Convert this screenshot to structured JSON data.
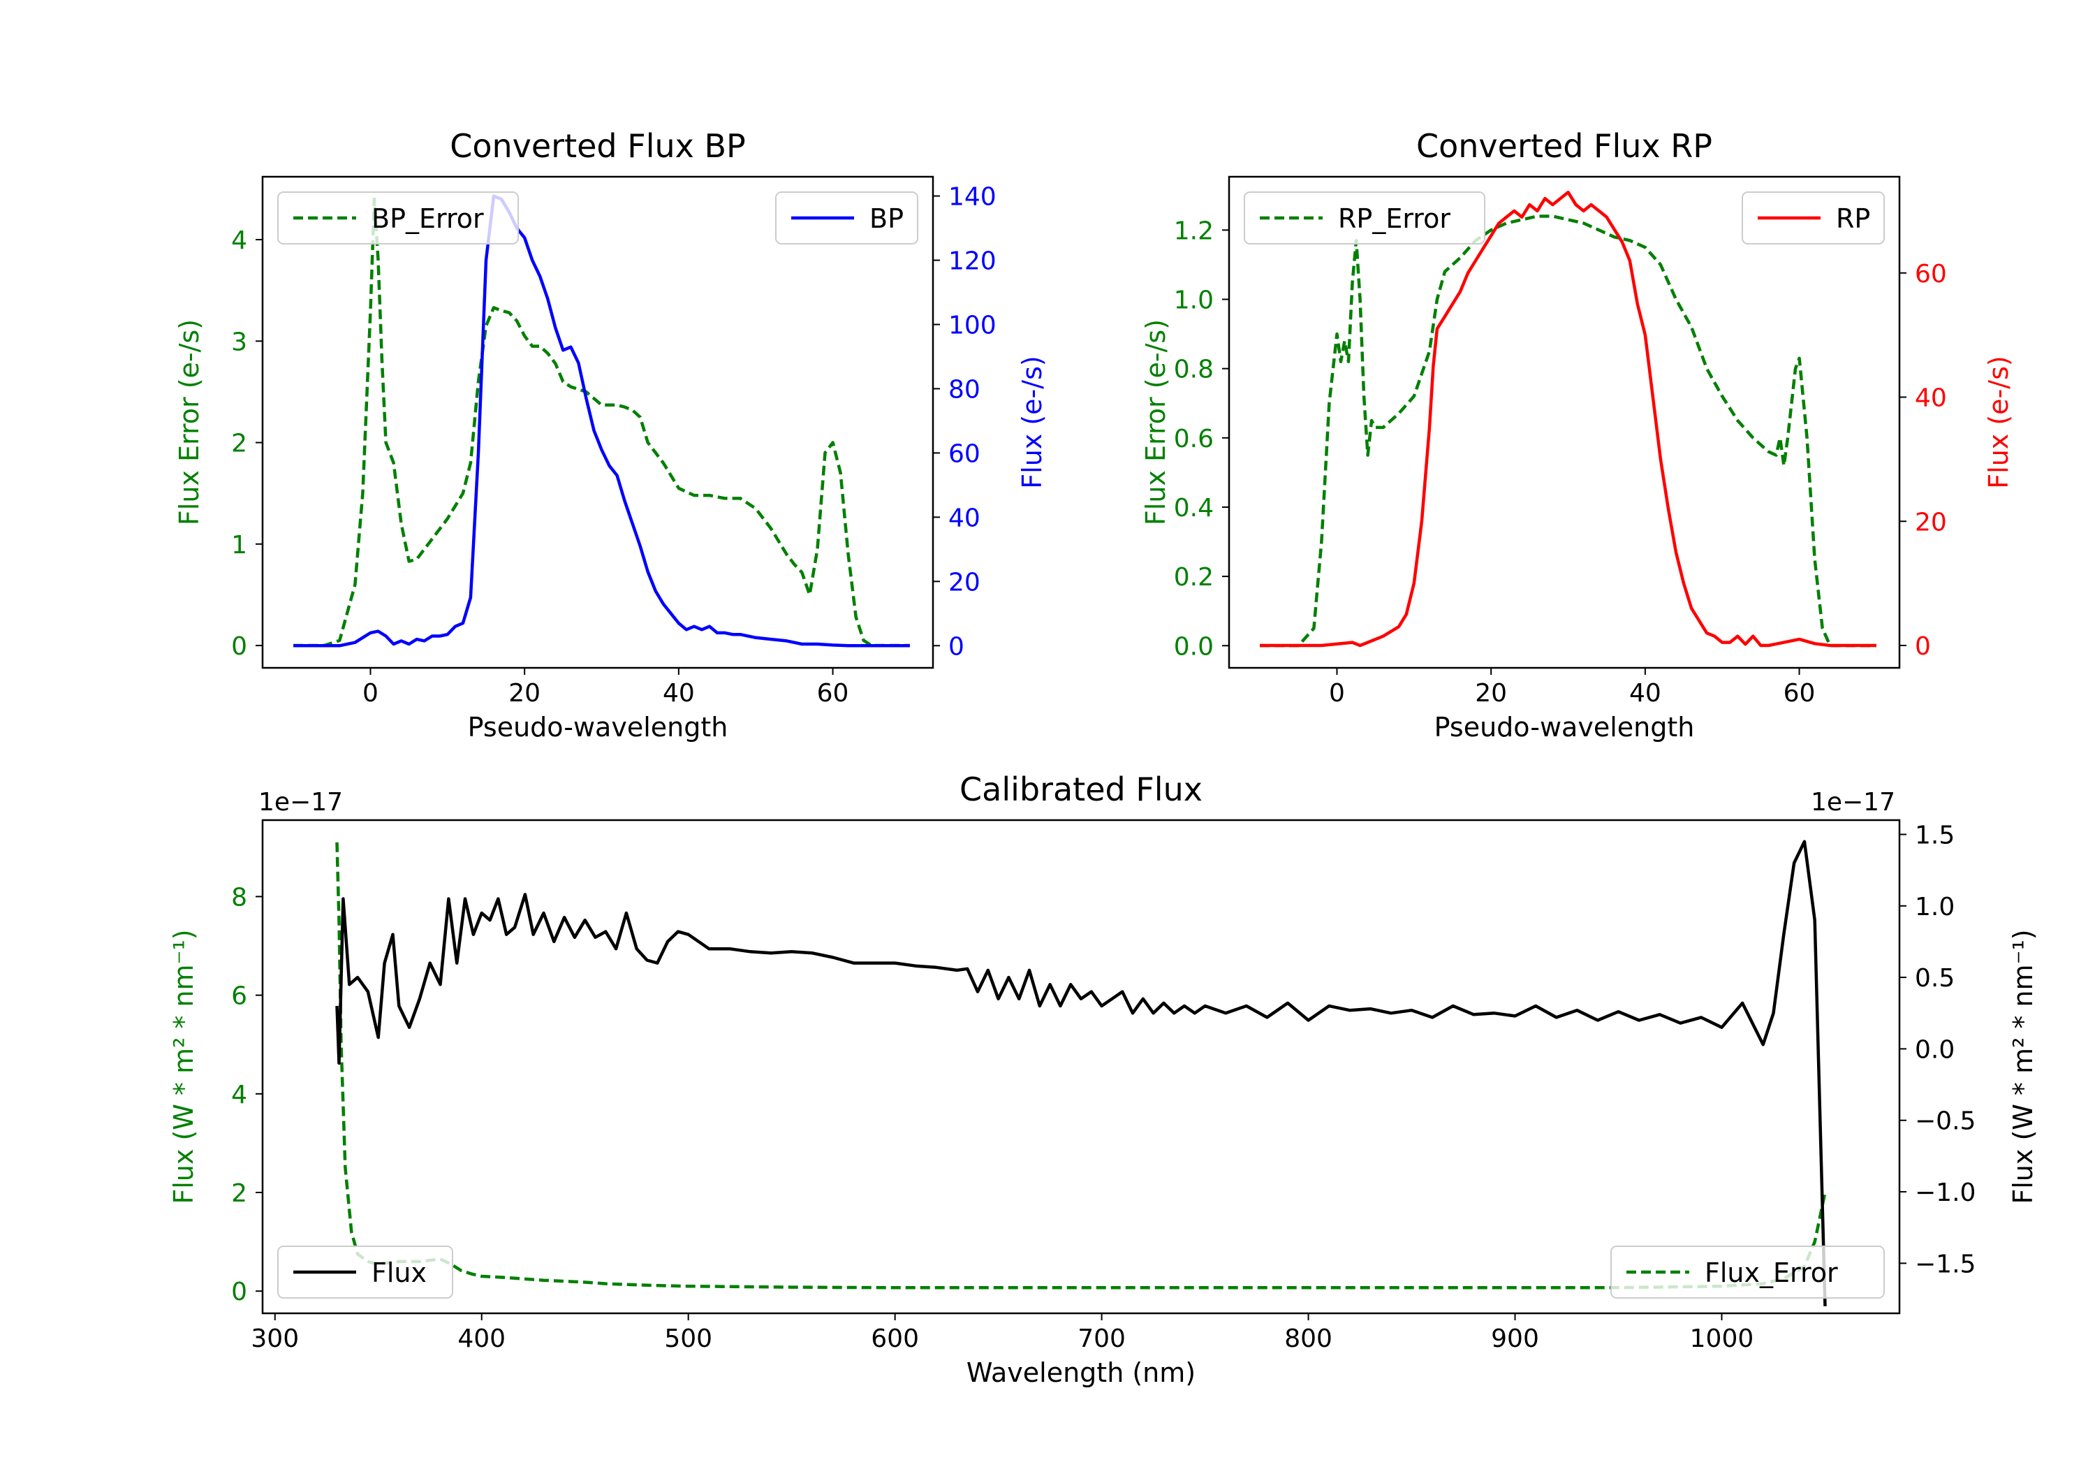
{
  "chart_data": [
    {
      "id": "bp",
      "type": "line",
      "title": "Converted Flux BP",
      "xlabel": "Pseudo-wavelength",
      "xlim": [
        -14,
        73
      ],
      "xticks": [
        0,
        20,
        40,
        60
      ],
      "left_axis": {
        "label": "Flux Error (e-/s)",
        "color": "#008000",
        "ylim": [
          -0.22,
          4.62
        ],
        "ticks": [
          0,
          1,
          2,
          3,
          4
        ]
      },
      "right_axis": {
        "label": "Flux (e-/s)",
        "color": "#0000ff",
        "ylim": [
          -6.9,
          146
        ],
        "ticks": [
          0,
          20,
          40,
          60,
          80,
          100,
          120,
          140
        ]
      },
      "legend_left": "BP_Error",
      "legend_right": "BP",
      "series": [
        {
          "name": "BP_Error",
          "axis": "left",
          "style": "dashed",
          "color": "#008000",
          "x": [
            -10,
            -6,
            -4,
            -2,
            -1,
            0,
            0.5,
            1,
            1.5,
            2,
            3,
            4,
            5,
            6,
            8,
            10,
            12,
            13,
            14,
            15,
            16,
            17,
            18,
            19,
            20,
            21,
            22,
            23,
            24,
            25,
            26,
            28,
            30,
            32,
            33,
            34,
            35,
            36,
            38,
            40,
            42,
            44,
            46,
            48,
            50,
            52,
            54,
            55,
            56,
            57,
            58,
            59,
            60,
            61,
            62,
            63,
            64,
            65,
            66,
            70
          ],
          "y": [
            0,
            0,
            0.05,
            0.6,
            1.5,
            3.3,
            4.4,
            3.8,
            2.8,
            2.0,
            1.8,
            1.2,
            0.83,
            0.85,
            1.05,
            1.25,
            1.5,
            1.8,
            2.6,
            3.15,
            3.33,
            3.3,
            3.28,
            3.2,
            3.05,
            2.95,
            2.95,
            2.88,
            2.78,
            2.6,
            2.55,
            2.5,
            2.37,
            2.37,
            2.35,
            2.32,
            2.25,
            2.0,
            1.8,
            1.55,
            1.48,
            1.48,
            1.45,
            1.45,
            1.35,
            1.15,
            0.9,
            0.8,
            0.72,
            0.5,
            0.95,
            1.9,
            2.0,
            1.7,
            0.9,
            0.28,
            0.05,
            0,
            0,
            0
          ]
        },
        {
          "name": "BP",
          "axis": "right",
          "style": "solid",
          "color": "#0000ff",
          "x": [
            -10,
            -4,
            -2,
            0,
            1,
            2,
            3,
            4,
            5,
            6,
            7,
            8,
            9,
            10,
            11,
            12,
            13,
            14,
            15,
            16,
            17,
            18,
            19,
            20,
            21,
            22,
            23,
            24,
            25,
            26,
            27,
            28,
            29,
            30,
            31,
            32,
            33,
            34,
            35,
            36,
            37,
            38,
            39,
            40,
            41,
            42,
            43,
            44,
            45,
            46,
            47,
            48,
            50,
            52,
            54,
            56,
            58,
            60,
            62,
            64,
            70
          ],
          "y": [
            0,
            0,
            1,
            4,
            4.5,
            3,
            0.5,
            1.5,
            0.5,
            2,
            1.5,
            3,
            3,
            3.5,
            6,
            7,
            15,
            60,
            120,
            140,
            139,
            135,
            130,
            127,
            120,
            115,
            108,
            99,
            92,
            93,
            88,
            77,
            67,
            61,
            56,
            53,
            45,
            38,
            31,
            23,
            17,
            13,
            10,
            7,
            5,
            6,
            5,
            6,
            4,
            4,
            3.5,
            3.5,
            2.5,
            2,
            1.5,
            0.5,
            0.5,
            0.2,
            0,
            0,
            0
          ]
        }
      ]
    },
    {
      "id": "rp",
      "type": "line",
      "title": "Converted Flux RP",
      "xlabel": "Pseudo-wavelength",
      "xlim": [
        -14,
        73
      ],
      "xticks": [
        0,
        20,
        40,
        60
      ],
      "left_axis": {
        "label": "Flux Error (e-/s)",
        "color": "#008000",
        "ylim": [
          -0.064,
          1.354
        ],
        "ticks": [
          0.0,
          0.2,
          0.4,
          0.6,
          0.8,
          1.0,
          1.2
        ],
        "tick_labels": [
          "0.0",
          "0.2",
          "0.4",
          "0.6",
          "0.8",
          "1.0",
          "1.2"
        ]
      },
      "right_axis": {
        "label": "Flux (e-/s)",
        "color": "#ff0000",
        "ylim": [
          -3.6,
          75.5
        ],
        "ticks": [
          0,
          20,
          40,
          60
        ]
      },
      "legend_left": "RP_Error",
      "legend_right": "RP",
      "series": [
        {
          "name": "RP_Error",
          "axis": "left",
          "style": "dashed",
          "color": "#008000",
          "x": [
            -10,
            -5,
            -3,
            -2,
            -1,
            0,
            0.5,
            1,
            1.5,
            2,
            2.5,
            3,
            3.5,
            4,
            4.5,
            5,
            6,
            8,
            10,
            12,
            13,
            14,
            15,
            16,
            18,
            20,
            22,
            24,
            26,
            28,
            30,
            32,
            34,
            36,
            38,
            40,
            42,
            44,
            46,
            48,
            50,
            52,
            54,
            55,
            56,
            57,
            57.5,
            58,
            58.5,
            59,
            59.5,
            60,
            61,
            62,
            63,
            64,
            70
          ],
          "y": [
            0,
            0,
            0.05,
            0.3,
            0.7,
            0.9,
            0.82,
            0.88,
            0.82,
            1.05,
            1.17,
            1.0,
            0.72,
            0.55,
            0.65,
            0.63,
            0.63,
            0.67,
            0.72,
            0.85,
            1.0,
            1.08,
            1.1,
            1.12,
            1.17,
            1.2,
            1.22,
            1.23,
            1.24,
            1.24,
            1.23,
            1.22,
            1.2,
            1.18,
            1.17,
            1.15,
            1.1,
            1.0,
            0.92,
            0.8,
            0.72,
            0.65,
            0.6,
            0.58,
            0.56,
            0.55,
            0.6,
            0.52,
            0.6,
            0.7,
            0.8,
            0.83,
            0.6,
            0.25,
            0.05,
            0,
            0
          ]
        },
        {
          "name": "RP",
          "axis": "right",
          "style": "solid",
          "color": "#ff0000",
          "x": [
            -10,
            -2,
            2,
            3,
            4,
            6,
            8,
            9,
            10,
            11,
            12,
            12.5,
            13,
            14,
            15,
            16,
            17,
            18,
            19,
            20,
            21,
            22,
            23,
            24,
            25,
            26,
            27,
            28,
            29,
            30,
            31,
            32,
            33,
            34,
            35,
            36,
            37,
            38,
            39,
            40,
            41,
            42,
            43,
            44,
            45,
            46,
            47,
            48,
            49,
            50,
            51,
            52,
            53,
            54,
            55,
            56,
            58,
            60,
            62,
            64,
            70
          ],
          "y": [
            0,
            0,
            0.5,
            0,
            0.5,
            1.5,
            3,
            5,
            10,
            20,
            35,
            45,
            51,
            53,
            55,
            57,
            60,
            62,
            64,
            66,
            68,
            69,
            70,
            69,
            71,
            70,
            72,
            71,
            72,
            73,
            71,
            70,
            71,
            70,
            69,
            67,
            65,
            62,
            55,
            50,
            40,
            30,
            22,
            15,
            10,
            6,
            4,
            2,
            1.5,
            0.5,
            0.5,
            1.5,
            0.2,
            1.5,
            0,
            0,
            0.5,
            1,
            0.3,
            0,
            0
          ]
        }
      ]
    },
    {
      "id": "cal",
      "type": "line",
      "title": "Calibrated Flux",
      "xlabel": "Wavelength (nm)",
      "xlim": [
        294,
        1086
      ],
      "xticks": [
        300,
        400,
        500,
        600,
        700,
        800,
        900,
        1000
      ],
      "left_axis": {
        "label": "Flux (W * m² * nm⁻¹)",
        "color": "#008000",
        "ylim": [
          -0.45,
          9.55
        ],
        "ticks": [
          0,
          2,
          4,
          6,
          8
        ],
        "multiplier": "1e−17"
      },
      "right_axis": {
        "label": "Flux (W * m² * nm⁻¹)",
        "color": "#000000",
        "ylim": [
          -1.85,
          1.6
        ],
        "ticks": [
          -1.5,
          -1.0,
          -0.5,
          0.0,
          0.5,
          1.0,
          1.5
        ],
        "tick_labels": [
          "−1.5",
          "−1.0",
          "−0.5",
          "0.0",
          "0.5",
          "1.0",
          "1.5"
        ],
        "multiplier": "1e−17"
      },
      "legend_left": "Flux",
      "legend_right": "Flux_Error",
      "series": [
        {
          "name": "Flux_Error",
          "axis": "left",
          "style": "dashed",
          "color": "#008000",
          "x": [
            330,
            331,
            332,
            334,
            337,
            340,
            345,
            350,
            360,
            370,
            380,
            385,
            390,
            395,
            400,
            410,
            420,
            430,
            440,
            450,
            460,
            480,
            500,
            550,
            600,
            700,
            800,
            900,
            950,
            1000,
            1020,
            1030,
            1040,
            1045,
            1050
          ],
          "y": [
            9.1,
            7.5,
            5.0,
            2.5,
            1.2,
            0.75,
            0.6,
            0.55,
            0.6,
            0.6,
            0.65,
            0.55,
            0.42,
            0.35,
            0.3,
            0.28,
            0.25,
            0.22,
            0.2,
            0.18,
            0.15,
            0.12,
            0.1,
            0.08,
            0.07,
            0.07,
            0.07,
            0.07,
            0.07,
            0.1,
            0.15,
            0.25,
            0.5,
            1.0,
            2.0
          ]
        },
        {
          "name": "Flux",
          "axis": "right",
          "style": "solid",
          "color": "#000000",
          "x": [
            330,
            331,
            333,
            336,
            340,
            345,
            350,
            353,
            357,
            360,
            365,
            370,
            375,
            380,
            384,
            388,
            392,
            396,
            400,
            404,
            408,
            412,
            416,
            421,
            425,
            430,
            435,
            440,
            445,
            450,
            455,
            460,
            465,
            470,
            475,
            480,
            485,
            490,
            495,
            500,
            510,
            520,
            530,
            540,
            550,
            560,
            570,
            580,
            590,
            600,
            610,
            620,
            630,
            635,
            640,
            645,
            650,
            655,
            660,
            665,
            670,
            675,
            680,
            685,
            690,
            695,
            700,
            705,
            710,
            715,
            720,
            725,
            730,
            735,
            740,
            745,
            750,
            760,
            770,
            780,
            790,
            800,
            810,
            820,
            830,
            840,
            850,
            860,
            870,
            880,
            890,
            900,
            910,
            920,
            930,
            940,
            950,
            960,
            970,
            980,
            990,
            1000,
            1010,
            1020,
            1025,
            1030,
            1035,
            1040,
            1045,
            1050
          ],
          "y": [
            0.3,
            -0.1,
            1.05,
            0.45,
            0.5,
            0.4,
            0.08,
            0.6,
            0.8,
            0.3,
            0.15,
            0.35,
            0.6,
            0.45,
            1.05,
            0.6,
            1.05,
            0.8,
            0.95,
            0.9,
            1.05,
            0.8,
            0.85,
            1.08,
            0.8,
            0.95,
            0.75,
            0.92,
            0.78,
            0.9,
            0.78,
            0.82,
            0.7,
            0.95,
            0.7,
            0.62,
            0.6,
            0.75,
            0.82,
            0.8,
            0.7,
            0.7,
            0.68,
            0.67,
            0.68,
            0.67,
            0.64,
            0.6,
            0.6,
            0.6,
            0.58,
            0.57,
            0.55,
            0.56,
            0.4,
            0.55,
            0.35,
            0.5,
            0.35,
            0.55,
            0.3,
            0.45,
            0.3,
            0.45,
            0.35,
            0.4,
            0.3,
            0.35,
            0.4,
            0.25,
            0.35,
            0.25,
            0.32,
            0.25,
            0.3,
            0.25,
            0.3,
            0.25,
            0.3,
            0.22,
            0.32,
            0.2,
            0.3,
            0.27,
            0.28,
            0.25,
            0.27,
            0.22,
            0.3,
            0.24,
            0.25,
            0.23,
            0.3,
            0.22,
            0.27,
            0.2,
            0.26,
            0.2,
            0.24,
            0.18,
            0.22,
            0.15,
            0.32,
            0.03,
            0.25,
            0.8,
            1.3,
            1.45,
            0.9,
            -1.8
          ]
        }
      ]
    }
  ]
}
